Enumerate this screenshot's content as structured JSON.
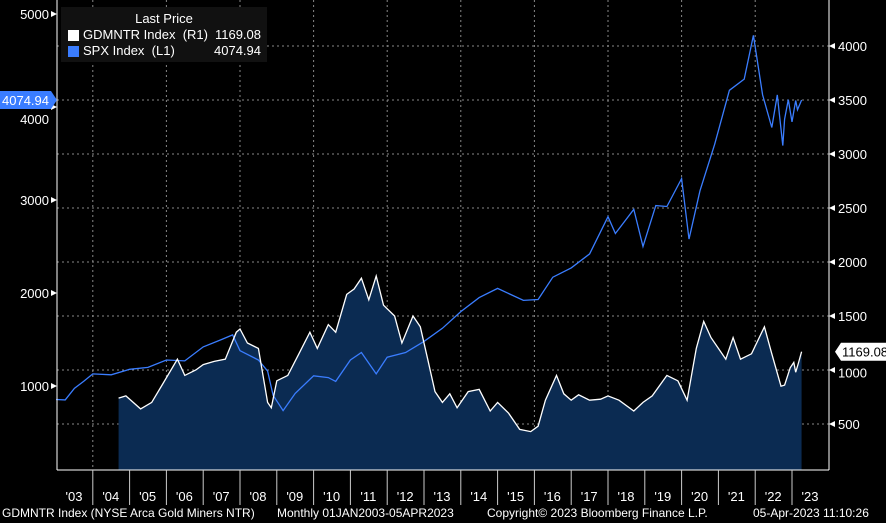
{
  "chart_data": {
    "type": "line",
    "legend": {
      "title": "Last Price",
      "placement": "top-left"
    },
    "x_range": [
      2003.0,
      2023.3
    ],
    "x_ticks": [
      "'03",
      "'04",
      "'05",
      "'06",
      "'07",
      "'08",
      "'09",
      "'10",
      "'11",
      "'12",
      "'13",
      "'14",
      "'15",
      "'16",
      "'17",
      "'18",
      "'19",
      "'20",
      "'21",
      "'22",
      "'23"
    ],
    "y_left": {
      "range": [
        0,
        5150
      ],
      "ticks": [
        "1000",
        "2000",
        "3000",
        "4000",
        "5000"
      ]
    },
    "y_right": {
      "range": [
        0,
        4420
      ],
      "ticks": [
        "500",
        "1000",
        "1500",
        "2000",
        "2500",
        "3000",
        "3500",
        "4000"
      ]
    },
    "series": [
      {
        "name": "GDMNTR Index",
        "axis_label": "(R1)",
        "last": "1169.08",
        "color": "#ffffff",
        "fill": "#0b2b52",
        "axis": "right",
        "x": [
          2004.7,
          2004.9,
          2005.3,
          2005.6,
          2005.9,
          2006.3,
          2006.5,
          2006.8,
          2007.0,
          2007.3,
          2007.6,
          2007.9,
          2008.0,
          2008.2,
          2008.5,
          2008.75,
          2008.85,
          2009.0,
          2009.3,
          2009.6,
          2009.9,
          2010.1,
          2010.4,
          2010.6,
          2010.9,
          2011.1,
          2011.3,
          2011.5,
          2011.7,
          2011.9,
          2012.2,
          2012.4,
          2012.7,
          2012.9,
          2013.1,
          2013.3,
          2013.5,
          2013.7,
          2013.9,
          2014.2,
          2014.5,
          2014.8,
          2015.0,
          2015.3,
          2015.6,
          2015.9,
          2016.1,
          2016.3,
          2016.6,
          2016.8,
          2017.0,
          2017.2,
          2017.5,
          2017.8,
          2018.0,
          2018.3,
          2018.7,
          2018.95,
          2019.2,
          2019.6,
          2019.9,
          2020.15,
          2020.4,
          2020.6,
          2020.8,
          2021.0,
          2021.2,
          2021.4,
          2021.6,
          2021.9,
          2022.25,
          2022.45,
          2022.7,
          2022.8,
          2022.95,
          2023.05,
          2023.1,
          2023.17,
          2023.26
        ],
        "y": [
          740,
          760,
          640,
          700,
          870,
          1100,
          950,
          1000,
          1050,
          1080,
          1100,
          1350,
          1380,
          1250,
          1200,
          700,
          650,
          900,
          950,
          1150,
          1350,
          1200,
          1420,
          1350,
          1700,
          1750,
          1850,
          1650,
          1870,
          1600,
          1500,
          1250,
          1500,
          1400,
          1100,
          800,
          700,
          780,
          650,
          800,
          820,
          620,
          700,
          600,
          450,
          430,
          480,
          720,
          950,
          780,
          720,
          770,
          720,
          730,
          760,
          720,
          620,
          700,
          760,
          950,
          900,
          720,
          1200,
          1450,
          1300,
          1200,
          1100,
          1300,
          1100,
          1150,
          1400,
          1150,
          850,
          860,
          1020,
          1070,
          980,
          1060,
          1169.08
        ]
      },
      {
        "name": "SPX Index",
        "axis_label": "(L1)",
        "last": "4074.94",
        "color": "#3a7dff",
        "axis": "left",
        "x": [
          2003.0,
          2003.25,
          2003.5,
          2003.75,
          2004.0,
          2004.5,
          2005.0,
          2005.5,
          2006.0,
          2006.5,
          2007.0,
          2007.5,
          2007.8,
          2008.0,
          2008.5,
          2008.75,
          2008.9,
          2009.17,
          2009.5,
          2010.0,
          2010.4,
          2010.6,
          2011.0,
          2011.3,
          2011.7,
          2012.0,
          2012.5,
          2013.0,
          2013.5,
          2014.0,
          2014.5,
          2015.0,
          2015.7,
          2016.1,
          2016.5,
          2017.0,
          2017.5,
          2018.0,
          2018.2,
          2018.7,
          2018.95,
          2019.3,
          2019.6,
          2020.0,
          2020.2,
          2020.5,
          2020.9,
          2021.3,
          2021.7,
          2021.95,
          2022.2,
          2022.45,
          2022.6,
          2022.75,
          2022.8,
          2022.9,
          2023.0,
          2023.1,
          2023.15,
          2023.26
        ],
        "y": [
          855,
          850,
          975,
          1050,
          1130,
          1120,
          1180,
          1200,
          1280,
          1270,
          1420,
          1500,
          1550,
          1380,
          1280,
          1160,
          900,
          735,
          920,
          1110,
          1090,
          1050,
          1280,
          1360,
          1130,
          1310,
          1360,
          1480,
          1620,
          1800,
          1950,
          2050,
          1920,
          1930,
          2170,
          2270,
          2420,
          2820,
          2640,
          2900,
          2500,
          2940,
          2930,
          3230,
          2580,
          3100,
          3600,
          4180,
          4300,
          4770,
          4130,
          3780,
          4130,
          3585,
          3870,
          4080,
          3840,
          4070,
          3970,
          4074.94
        ]
      }
    ]
  },
  "footer": {
    "security": "GDMNTR Index (NYSE Arca Gold Miners NTR)",
    "period": "Monthly 01JAN2003-05APR2023",
    "copyright": "Copyright© 2023 Bloomberg Finance L.P.",
    "timestamp": "05-Apr-2023 11:10:26"
  }
}
